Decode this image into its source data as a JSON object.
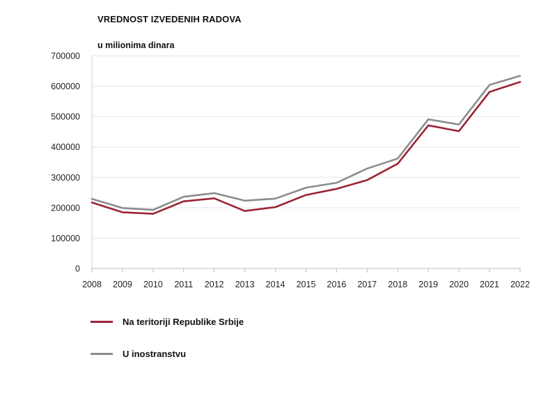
{
  "chart_data": {
    "type": "line",
    "title": "VREDNOST IZVEDENIH RADOVA",
    "ylabel": "u milionima dinara",
    "xlabel": "",
    "categories": [
      "2008",
      "2009",
      "2010",
      "2011",
      "2012",
      "2013",
      "2014",
      "2015",
      "2016",
      "2017",
      "2018",
      "2019",
      "2020",
      "2021",
      "2022"
    ],
    "ylim": [
      0,
      700000
    ],
    "yticks": [
      "0",
      "100000",
      "200000",
      "300000",
      "400000",
      "500000",
      "600000",
      "700000"
    ],
    "grid": true,
    "legend_position": "bottom-left",
    "series": [
      {
        "name": "Na teritoriji Republike Srbije",
        "color": "#9b2335",
        "values": [
          217000,
          185000,
          180000,
          221000,
          231000,
          189000,
          202000,
          242000,
          262000,
          291000,
          345000,
          471000,
          452000,
          581000,
          614000
        ]
      },
      {
        "name": "U inostranstvu",
        "color": "#8c8c8c",
        "values": [
          229000,
          199000,
          193000,
          236000,
          248000,
          223000,
          230000,
          266000,
          282000,
          329000,
          362000,
          491000,
          474000,
          604000,
          634000
        ]
      }
    ]
  }
}
